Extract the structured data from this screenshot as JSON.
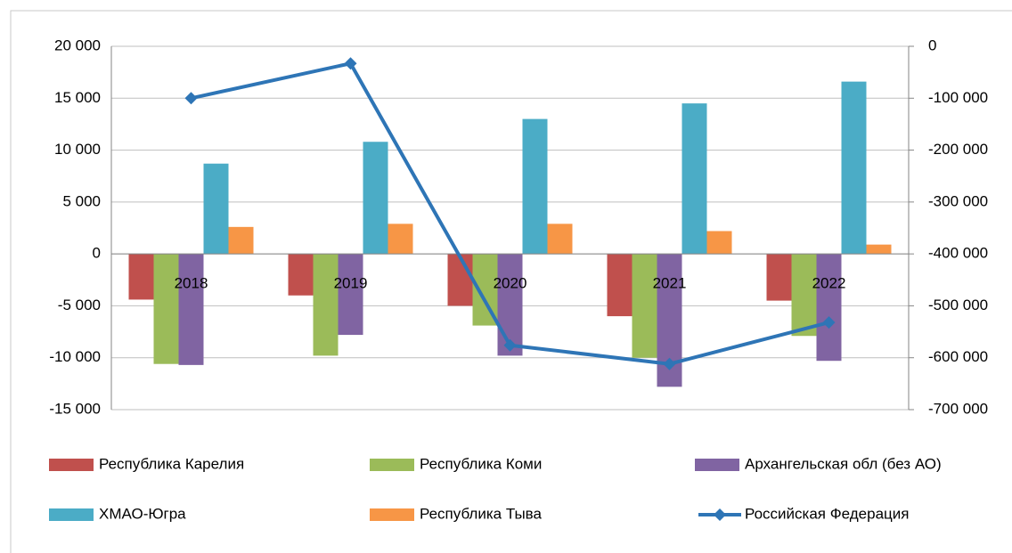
{
  "chart_data": {
    "type": "bar",
    "categories": [
      "2018",
      "2019",
      "2020",
      "2021",
      "2022"
    ],
    "series": [
      {
        "name": "Республика Карелия",
        "color": "#c0504d",
        "values": [
          -4400,
          -4000,
          -5000,
          -6000,
          -4500
        ]
      },
      {
        "name": "Республика Коми",
        "color": "#9bbb59",
        "values": [
          -10600,
          -9800,
          -6900,
          -10000,
          -7900
        ]
      },
      {
        "name": "Архангельская обл (без АО)",
        "color": "#8064a2",
        "values": [
          -10700,
          -7800,
          -9800,
          -12800,
          -10300
        ]
      },
      {
        "name": "ХМАО-Югра",
        "color": "#4bacc6",
        "values": [
          8700,
          10800,
          13000,
          14500,
          16600
        ]
      },
      {
        "name": "Республика Тыва",
        "color": "#f79646",
        "values": [
          2600,
          2900,
          2900,
          2200,
          900
        ]
      },
      {
        "name": "Российская Федерация",
        "color": "#2e75b6",
        "type": "line",
        "axis": "y2",
        "values": [
          -100000,
          -33000,
          -576000,
          -612000,
          -532000
        ]
      }
    ],
    "ylim": [
      -15000,
      20000
    ],
    "yticks": [
      {
        "value": -15000,
        "label": "-15 000"
      },
      {
        "value": -10000,
        "label": "-10 000"
      },
      {
        "value": -5000,
        "label": "-5 000"
      },
      0,
      {
        "value": 5000,
        "label": "5 000"
      },
      {
        "value": 10000,
        "label": "10 000"
      },
      {
        "value": 15000,
        "label": "15 000"
      },
      {
        "value": 20000,
        "label": "20 000"
      }
    ],
    "y2lim": [
      -700000,
      0
    ],
    "y2ticks": [
      {
        "value": -700000,
        "label": "-700 000"
      },
      {
        "value": -600000,
        "label": "-600 000"
      },
      {
        "value": -500000,
        "label": "-500 000"
      },
      {
        "value": -400000,
        "label": "-400 000"
      },
      {
        "value": -300000,
        "label": "-300 000"
      },
      {
        "value": -200000,
        "label": "-200 000"
      },
      {
        "value": -100000,
        "label": "-100 000"
      },
      0
    ],
    "grid": true,
    "legend": "bottom"
  }
}
